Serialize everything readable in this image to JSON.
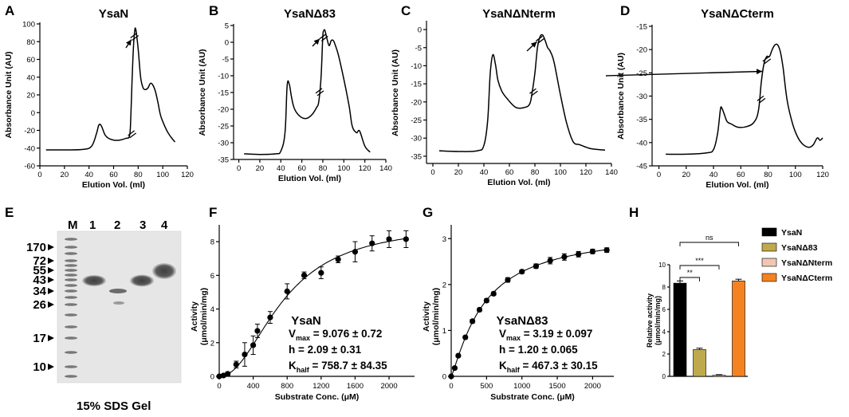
{
  "figure": {
    "panels": [
      "A",
      "B",
      "C",
      "D",
      "E",
      "F",
      "G",
      "H"
    ],
    "chromatograms": [
      {
        "letter": "A",
        "title": "YsaN",
        "ylabel": "Absorbance Unit (AU)",
        "xlabel": "Elution Vol. (ml)",
        "xticks": [
          "0",
          "20",
          "40",
          "60",
          "80",
          "100",
          "120"
        ],
        "yticks": [
          "-60",
          "-40",
          "-20",
          "0",
          "20",
          "40",
          "60",
          "80",
          "100"
        ]
      },
      {
        "letter": "B",
        "title": "YsaNΔ83",
        "ylabel": "Absorbance Unit (AU)",
        "xlabel": "Elution Vol. (ml)",
        "xticks": [
          "0",
          "20",
          "40",
          "60",
          "80",
          "100",
          "120",
          "140"
        ],
        "yticks": [
          "-35",
          "-30",
          "-25",
          "-20",
          "-15",
          "-10",
          "-5",
          "0",
          "5"
        ]
      },
      {
        "letter": "C",
        "title": "YsaNΔNterm",
        "ylabel": "Absorbance Unit (AU)",
        "xlabel": "Elution Vol. (ml)",
        "xticks": [
          "0",
          "20",
          "40",
          "60",
          "80",
          "100",
          "120",
          "140"
        ],
        "yticks": [
          "-35",
          "-30",
          "-25",
          "-20",
          "-15",
          "-10",
          "-5",
          "0"
        ]
      },
      {
        "letter": "D",
        "title": "YsaNΔCterm",
        "ylabel": "Absorbance Unit (AU)",
        "xlabel": "Elution Vol. (ml)",
        "xticks": [
          "0",
          "20",
          "40",
          "60",
          "80",
          "100",
          "120"
        ],
        "yticks": [
          "-45",
          "-40",
          "-35",
          "-30",
          "-25",
          "-20",
          "-15"
        ]
      }
    ],
    "gel": {
      "letter": "E",
      "lane_labels": [
        "M",
        "1",
        "2",
        "3",
        "4"
      ],
      "markers": [
        "170",
        "72",
        "55",
        "43",
        "34",
        "26",
        "17",
        "10"
      ],
      "caption": "15% SDS Gel"
    },
    "kinetics": [
      {
        "letter": "F",
        "name": "YsaN",
        "ylabel": "Activity",
        "ylabel2": "(μmol/min/mg)",
        "xlabel": "Substrate Conc. (μM)",
        "xticks": [
          "0",
          "400",
          "800",
          "1200",
          "1600",
          "2000"
        ],
        "yticks": [
          "0",
          "2",
          "4",
          "6",
          "8"
        ],
        "vmax_sym": "V",
        "vmax_sub": "max",
        "vmax_val": " = 9.076 ± 0.72",
        "h_text": "h = 2.09 ± 0.31",
        "k_sym": "K",
        "k_sub": "half",
        "k_val": " = 758.7 ± 84.35"
      },
      {
        "letter": "G",
        "name": "YsaNΔ83",
        "ylabel": "Activity",
        "ylabel2": "(μmol/min/mg)",
        "xlabel": "Substrate Conc. (μM)",
        "xticks": [
          "0",
          "500",
          "1000",
          "1500",
          "2000"
        ],
        "yticks": [
          "0",
          "1",
          "2",
          "3"
        ],
        "vmax_sym": "V",
        "vmax_sub": "max",
        "vmax_val": " = 3.19 ± 0.097",
        "h_text": "h = 1.20 ± 0.065",
        "k_sym": "K",
        "k_sub": "half",
        "k_val": " = 467.3 ± 30.15"
      }
    ],
    "bar_panel": {
      "letter": "H",
      "ylabel": "Relative activity",
      "ylabel2": "(μmol/min/mg)",
      "yticks": [
        "0",
        "2",
        "4",
        "6",
        "8",
        "10"
      ],
      "significance": [
        "**",
        "***",
        "ns"
      ],
      "legend": [
        "YsaN",
        "YsaNΔ83",
        "YsaNΔNterm",
        "YsaNΔCterm"
      ]
    }
  },
  "chart_data": [
    {
      "type": "line",
      "panel": "A",
      "title": "YsaN",
      "xlabel": "Elution Vol. (ml)",
      "ylabel": "Absorbance Unit (AU)",
      "xlim": [
        0,
        120
      ],
      "ylim": [
        -60,
        100
      ],
      "x": [
        5,
        20,
        35,
        42,
        46,
        48,
        50,
        53,
        56,
        60,
        65,
        70,
        73,
        74,
        75,
        76,
        77,
        78,
        80,
        82,
        84,
        86,
        88,
        90,
        92,
        94,
        96,
        98,
        100,
        104,
        108,
        110
      ],
      "y": [
        -42,
        -42,
        -41.5,
        -38,
        -24,
        -14,
        -15,
        -25,
        -29,
        -31,
        -31,
        -29,
        -26,
        -5,
        35,
        70,
        90,
        94,
        72,
        40,
        28,
        26,
        28,
        33,
        31,
        24,
        12,
        -2,
        -10,
        -22,
        -30,
        -33
      ]
    },
    {
      "type": "line",
      "panel": "B",
      "title": "YsaNΔ83",
      "xlabel": "Elution Vol. (ml)",
      "ylabel": "Absorbance Unit (AU)",
      "xlim": [
        -5,
        140
      ],
      "ylim": [
        -35,
        5
      ],
      "x": [
        5,
        20,
        35,
        40,
        44,
        46,
        48,
        50,
        52,
        55,
        60,
        65,
        70,
        74,
        76,
        78,
        79,
        80,
        81,
        82,
        84,
        86,
        88,
        90,
        92,
        95,
        100,
        105,
        108,
        112,
        115,
        120,
        125
      ],
      "y": [
        -33.3,
        -33.5,
        -33.3,
        -32.5,
        -27,
        -13,
        -12.5,
        -16,
        -19,
        -21,
        -22.5,
        -22.7,
        -21.5,
        -19.5,
        -18,
        -12,
        -6,
        2,
        3.5,
        3.5,
        1,
        -1,
        0.5,
        0.5,
        -1,
        -4,
        -11,
        -19,
        -25,
        -27,
        -26.5,
        -31,
        -32.8
      ]
    },
    {
      "type": "line",
      "panel": "C",
      "title": "YsaNΔNterm",
      "xlabel": "Elution Vol. (ml)",
      "ylabel": "Absorbance Unit (AU)",
      "xlim": [
        -5,
        140
      ],
      "ylim": [
        -37,
        2
      ],
      "x": [
        5,
        20,
        35,
        40,
        43,
        45,
        47,
        49,
        51,
        54,
        58,
        65,
        72,
        76,
        78,
        80,
        82,
        84,
        86,
        88,
        90,
        92,
        95,
        100,
        105,
        110,
        115,
        120,
        125,
        135
      ],
      "y": [
        -33.5,
        -33.7,
        -33.5,
        -32,
        -25,
        -12,
        -7,
        -9.5,
        -14,
        -17,
        -19,
        -21.5,
        -21.5,
        -20.5,
        -17,
        -12,
        -5,
        -2,
        -1.5,
        -3,
        -5,
        -6,
        -9,
        -18,
        -26,
        -31,
        -31.8,
        -32.5,
        -33,
        -33.3
      ]
    },
    {
      "type": "line",
      "panel": "D",
      "title": "YsaNΔCterm",
      "xlabel": "Elution Vol. (ml)",
      "ylabel": "Absorbance Unit (AU)",
      "xlim": [
        -5,
        120
      ],
      "ylim": [
        -45,
        -15
      ],
      "x": [
        5,
        20,
        35,
        40,
        43,
        45,
        46,
        48,
        50,
        53,
        58,
        65,
        70,
        73,
        75,
        77,
        79,
        81,
        83,
        85,
        87,
        89,
        91,
        94,
        98,
        102,
        106,
        110,
        113,
        116,
        118,
        120
      ],
      "y": [
        -42.5,
        -42.5,
        -42.2,
        -41.5,
        -38,
        -33,
        -32.5,
        -34,
        -35.5,
        -36,
        -36.7,
        -36.5,
        -35.5,
        -33,
        -27,
        -23,
        -21.5,
        -21.5,
        -20,
        -19,
        -19,
        -20.5,
        -24,
        -31,
        -36,
        -39,
        -40.5,
        -41,
        -40.5,
        -39,
        -39.5,
        -39
      ]
    },
    {
      "type": "scatter",
      "panel": "F",
      "title": "YsaN",
      "xlabel": "Substrate Conc. (μM)",
      "ylabel": "Activity (μmol/min/mg)",
      "xlim": [
        0,
        2300
      ],
      "ylim": [
        0,
        9
      ],
      "x": [
        0,
        50,
        100,
        200,
        300,
        400,
        450,
        600,
        800,
        1000,
        1200,
        1400,
        1600,
        1800,
        2000,
        2200
      ],
      "y": [
        0,
        0.05,
        0.15,
        0.7,
        1.3,
        1.85,
        2.7,
        3.5,
        5.05,
        6.0,
        6.15,
        6.95,
        7.4,
        7.9,
        8.15,
        8.15
      ],
      "error": [
        0,
        0.05,
        0.1,
        0.2,
        0.7,
        0.55,
        0.4,
        0.35,
        0.45,
        0.2,
        0.35,
        0.2,
        0.6,
        0.45,
        0.5,
        0.5
      ],
      "fit": {
        "vmax": 9.076,
        "h": 2.09,
        "khalf": 758.7
      }
    },
    {
      "type": "scatter",
      "panel": "G",
      "title": "YsaNΔ83",
      "xlabel": "Substrate Conc. (μM)",
      "ylabel": "Activity (μmol/min/mg)",
      "xlim": [
        0,
        2300
      ],
      "ylim": [
        0,
        3.3
      ],
      "x": [
        0,
        50,
        100,
        200,
        300,
        400,
        500,
        600,
        800,
        1000,
        1200,
        1400,
        1600,
        1800,
        2000,
        2200
      ],
      "y": [
        0,
        0.18,
        0.45,
        0.85,
        1.2,
        1.45,
        1.65,
        1.8,
        2.1,
        2.28,
        2.4,
        2.52,
        2.6,
        2.66,
        2.72,
        2.75
      ],
      "error": [
        0,
        0.02,
        0.03,
        0.03,
        0.04,
        0.04,
        0.04,
        0.04,
        0.05,
        0.04,
        0.05,
        0.07,
        0.07,
        0.06,
        0.05,
        0.05
      ],
      "fit": {
        "vmax": 3.19,
        "h": 1.2,
        "khalf": 467.3
      }
    },
    {
      "type": "bar",
      "panel": "H",
      "ylabel": "Relative activity (μmol/min/mg)",
      "ylim": [
        0,
        10
      ],
      "categories": [
        "YsaN",
        "YsaNΔ83",
        "YsaNΔNterm",
        "YsaNΔCterm"
      ],
      "values": [
        8.35,
        2.4,
        0.1,
        8.55
      ],
      "error": [
        0.2,
        0.12,
        0.05,
        0.15
      ],
      "colors": [
        "#000000",
        "#bfa94d",
        "#f1c7b4",
        "#f58220"
      ]
    }
  ]
}
